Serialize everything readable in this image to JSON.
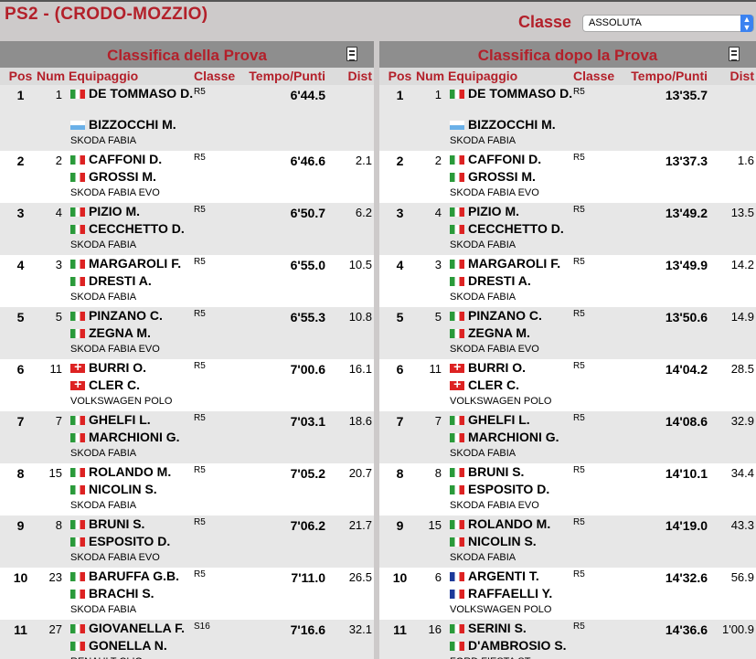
{
  "header": {
    "title": "PS2 - (CRODO-MOZZIO)",
    "classe_label": "Classe",
    "classe_value": "ASSOLUTA"
  },
  "columns": {
    "pos": "Pos",
    "num": "Num",
    "eq": "Equipaggio",
    "cl": "Classe",
    "tm": "Tempo/Punti",
    "di": "Dist"
  },
  "left": {
    "title": "Classifica della Prova",
    "rows": [
      {
        "pos": "1",
        "num": "1",
        "d1": "DE TOMMASO D.",
        "f1": "it",
        "d2": "BIZZOCCHI M.",
        "f2": "sm",
        "car": "SKODA FABIA",
        "cl": "R5",
        "tm": "6'44.5",
        "di": ""
      },
      {
        "pos": "2",
        "num": "2",
        "d1": "CAFFONI D.",
        "f1": "it",
        "d2": "GROSSI M.",
        "f2": "it",
        "car": "SKODA FABIA EVO",
        "cl": "R5",
        "tm": "6'46.6",
        "di": "2.1"
      },
      {
        "pos": "3",
        "num": "4",
        "d1": "PIZIO M.",
        "f1": "it",
        "d2": "CECCHETTO D.",
        "f2": "it",
        "car": "SKODA FABIA",
        "cl": "R5",
        "tm": "6'50.7",
        "di": "6.2"
      },
      {
        "pos": "4",
        "num": "3",
        "d1": "MARGAROLI F.",
        "f1": "it",
        "d2": "DRESTI A.",
        "f2": "it",
        "car": "SKODA FABIA",
        "cl": "R5",
        "tm": "6'55.0",
        "di": "10.5"
      },
      {
        "pos": "5",
        "num": "5",
        "d1": "PINZANO C.",
        "f1": "it",
        "d2": "ZEGNA M.",
        "f2": "it",
        "car": "SKODA FABIA EVO",
        "cl": "R5",
        "tm": "6'55.3",
        "di": "10.8"
      },
      {
        "pos": "6",
        "num": "11",
        "d1": "BURRI O.",
        "f1": "ch",
        "d2": "CLER C.",
        "f2": "ch",
        "car": "VOLKSWAGEN POLO",
        "cl": "R5",
        "tm": "7'00.6",
        "di": "16.1"
      },
      {
        "pos": "7",
        "num": "7",
        "d1": "GHELFI L.",
        "f1": "it",
        "d2": "MARCHIONI G.",
        "f2": "it",
        "car": "SKODA FABIA",
        "cl": "R5",
        "tm": "7'03.1",
        "di": "18.6"
      },
      {
        "pos": "8",
        "num": "15",
        "d1": "ROLANDO M.",
        "f1": "it",
        "d2": "NICOLIN S.",
        "f2": "it",
        "car": "SKODA FABIA",
        "cl": "R5",
        "tm": "7'05.2",
        "di": "20.7"
      },
      {
        "pos": "9",
        "num": "8",
        "d1": "BRUNI S.",
        "f1": "it",
        "d2": "ESPOSITO D.",
        "f2": "it",
        "car": "SKODA FABIA EVO",
        "cl": "R5",
        "tm": "7'06.2",
        "di": "21.7"
      },
      {
        "pos": "10",
        "num": "23",
        "d1": "BARUFFA G.B.",
        "f1": "it",
        "d2": "BRACHI S.",
        "f2": "it",
        "car": "SKODA FABIA",
        "cl": "R5",
        "tm": "7'11.0",
        "di": "26.5"
      },
      {
        "pos": "11",
        "num": "27",
        "d1": "GIOVANELLA F.",
        "f1": "it",
        "d2": "GONELLA N.",
        "f2": "it",
        "car": "RENAULT CLIO",
        "cl": "S16",
        "tm": "7'16.6",
        "di": "32.1"
      }
    ]
  },
  "right": {
    "title": "Classifica dopo la Prova",
    "rows": [
      {
        "pos": "1",
        "num": "1",
        "d1": "DE TOMMASO D.",
        "f1": "it",
        "d2": "BIZZOCCHI M.",
        "f2": "sm",
        "car": "SKODA FABIA",
        "cl": "R5",
        "tm": "13'35.7",
        "di": ""
      },
      {
        "pos": "2",
        "num": "2",
        "d1": "CAFFONI D.",
        "f1": "it",
        "d2": "GROSSI M.",
        "f2": "it",
        "car": "SKODA FABIA EVO",
        "cl": "R5",
        "tm": "13'37.3",
        "di": "1.6"
      },
      {
        "pos": "3",
        "num": "4",
        "d1": "PIZIO M.",
        "f1": "it",
        "d2": "CECCHETTO D.",
        "f2": "it",
        "car": "SKODA FABIA",
        "cl": "R5",
        "tm": "13'49.2",
        "di": "13.5"
      },
      {
        "pos": "4",
        "num": "3",
        "d1": "MARGAROLI F.",
        "f1": "it",
        "d2": "DRESTI A.",
        "f2": "it",
        "car": "SKODA FABIA",
        "cl": "R5",
        "tm": "13'49.9",
        "di": "14.2"
      },
      {
        "pos": "5",
        "num": "5",
        "d1": "PINZANO C.",
        "f1": "it",
        "d2": "ZEGNA M.",
        "f2": "it",
        "car": "SKODA FABIA EVO",
        "cl": "R5",
        "tm": "13'50.6",
        "di": "14.9"
      },
      {
        "pos": "6",
        "num": "11",
        "d1": "BURRI O.",
        "f1": "ch",
        "d2": "CLER C.",
        "f2": "ch",
        "car": "VOLKSWAGEN POLO",
        "cl": "R5",
        "tm": "14'04.2",
        "di": "28.5"
      },
      {
        "pos": "7",
        "num": "7",
        "d1": "GHELFI L.",
        "f1": "it",
        "d2": "MARCHIONI G.",
        "f2": "it",
        "car": "SKODA FABIA",
        "cl": "R5",
        "tm": "14'08.6",
        "di": "32.9"
      },
      {
        "pos": "8",
        "num": "8",
        "d1": "BRUNI S.",
        "f1": "it",
        "d2": "ESPOSITO D.",
        "f2": "it",
        "car": "SKODA FABIA EVO",
        "cl": "R5",
        "tm": "14'10.1",
        "di": "34.4"
      },
      {
        "pos": "9",
        "num": "15",
        "d1": "ROLANDO M.",
        "f1": "it",
        "d2": "NICOLIN S.",
        "f2": "it",
        "car": "SKODA FABIA",
        "cl": "R5",
        "tm": "14'19.0",
        "di": "43.3"
      },
      {
        "pos": "10",
        "num": "6",
        "d1": "ARGENTI T.",
        "f1": "fr",
        "d2": "RAFFAELLI Y.",
        "f2": "fr",
        "car": "VOLKSWAGEN POLO",
        "cl": "R5",
        "tm": "14'32.6",
        "di": "56.9"
      },
      {
        "pos": "11",
        "num": "16",
        "d1": "SERINI S.",
        "f1": "it",
        "d2": "D'AMBROSIO S.",
        "f2": "it",
        "car": "FORD FIESTA ST",
        "cl": "R5",
        "tm": "14'36.6",
        "di": "1'00.9"
      }
    ]
  }
}
